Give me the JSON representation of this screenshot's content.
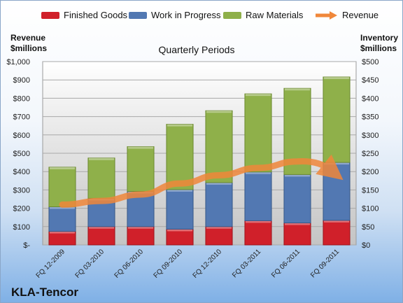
{
  "legend": {
    "finished": "Finished Goods",
    "wip": "Work in Progress",
    "raw": "Raw Materials",
    "revenue": "Revenue"
  },
  "left_axis_title_1": "Revenue",
  "left_axis_title_2": "$millions",
  "right_axis_title_1": "Inventory",
  "right_axis_title_2": "$millions",
  "company": "KLA-Tencor",
  "colors": {
    "finished": "#d0202a",
    "wip": "#5278b2",
    "raw": "#8fb04a",
    "revenue": "#f0873a"
  },
  "chart_data": {
    "type": "bar",
    "title": "Quarterly Periods",
    "categories": [
      "FQ 12-2009",
      "FQ 03-2010",
      "FQ 06-2010",
      "FQ 09-2010",
      "FQ 12-2010",
      "FQ 03-2011",
      "FQ 06-2011",
      "FQ 09-2011"
    ],
    "stacked": true,
    "series": [
      {
        "name": "Finished Goods",
        "axis": "right",
        "values": [
          37,
          50,
          50,
          43,
          50,
          66,
          60,
          67
        ]
      },
      {
        "name": "Work in Progress",
        "axis": "right",
        "values": [
          67,
          77,
          96,
          108,
          120,
          133,
          132,
          158
        ]
      },
      {
        "name": "Raw Materials",
        "axis": "right",
        "values": [
          108,
          110,
          122,
          178,
          196,
          213,
          235,
          233
        ]
      },
      {
        "name": "Revenue",
        "axis": "left",
        "type": "line",
        "values": [
          220,
          240,
          275,
          335,
          380,
          420,
          455,
          400
        ]
      }
    ],
    "left_axis": {
      "ylim": [
        0,
        1000
      ],
      "ticks": [
        "$-",
        "$100",
        "$200",
        "$300",
        "$400",
        "$500",
        "$600",
        "$700",
        "$800",
        "$900",
        "$1,000"
      ]
    },
    "right_axis": {
      "ylim": [
        0,
        500
      ],
      "ticks": [
        "$0",
        "$50",
        "$100",
        "$150",
        "$200",
        "$250",
        "$300",
        "$350",
        "$400",
        "$450",
        "$500"
      ]
    },
    "grid": true,
    "legend_position": "top"
  }
}
